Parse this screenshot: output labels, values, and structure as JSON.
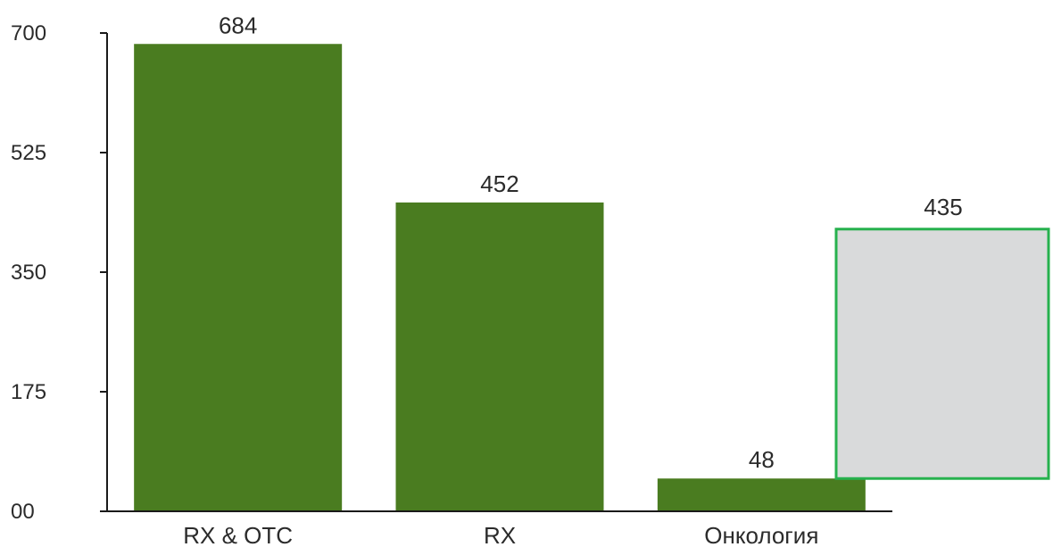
{
  "chart_data": {
    "type": "bar",
    "categories": [
      "RX & OTC",
      "RX",
      "Онкология"
    ],
    "values": [
      684,
      452,
      48
    ],
    "data_labels": [
      "684",
      "452",
      "48"
    ],
    "extra_box": {
      "label": "435",
      "bottom_value": 48,
      "top_value": 413
    },
    "ylim": [
      0,
      700
    ],
    "yticks": [
      0,
      175,
      350,
      525,
      700
    ],
    "ytick_labels": [
      "00",
      "175",
      "350",
      "525",
      "700"
    ],
    "title": "",
    "xlabel": "",
    "ylabel": "",
    "grid": false,
    "colors": {
      "bar": "#4a7c20",
      "box_fill": "#d9dadb",
      "box_stroke": "#27b14e",
      "axis": "#1a1a1a",
      "text": "#2b2b2b"
    }
  }
}
